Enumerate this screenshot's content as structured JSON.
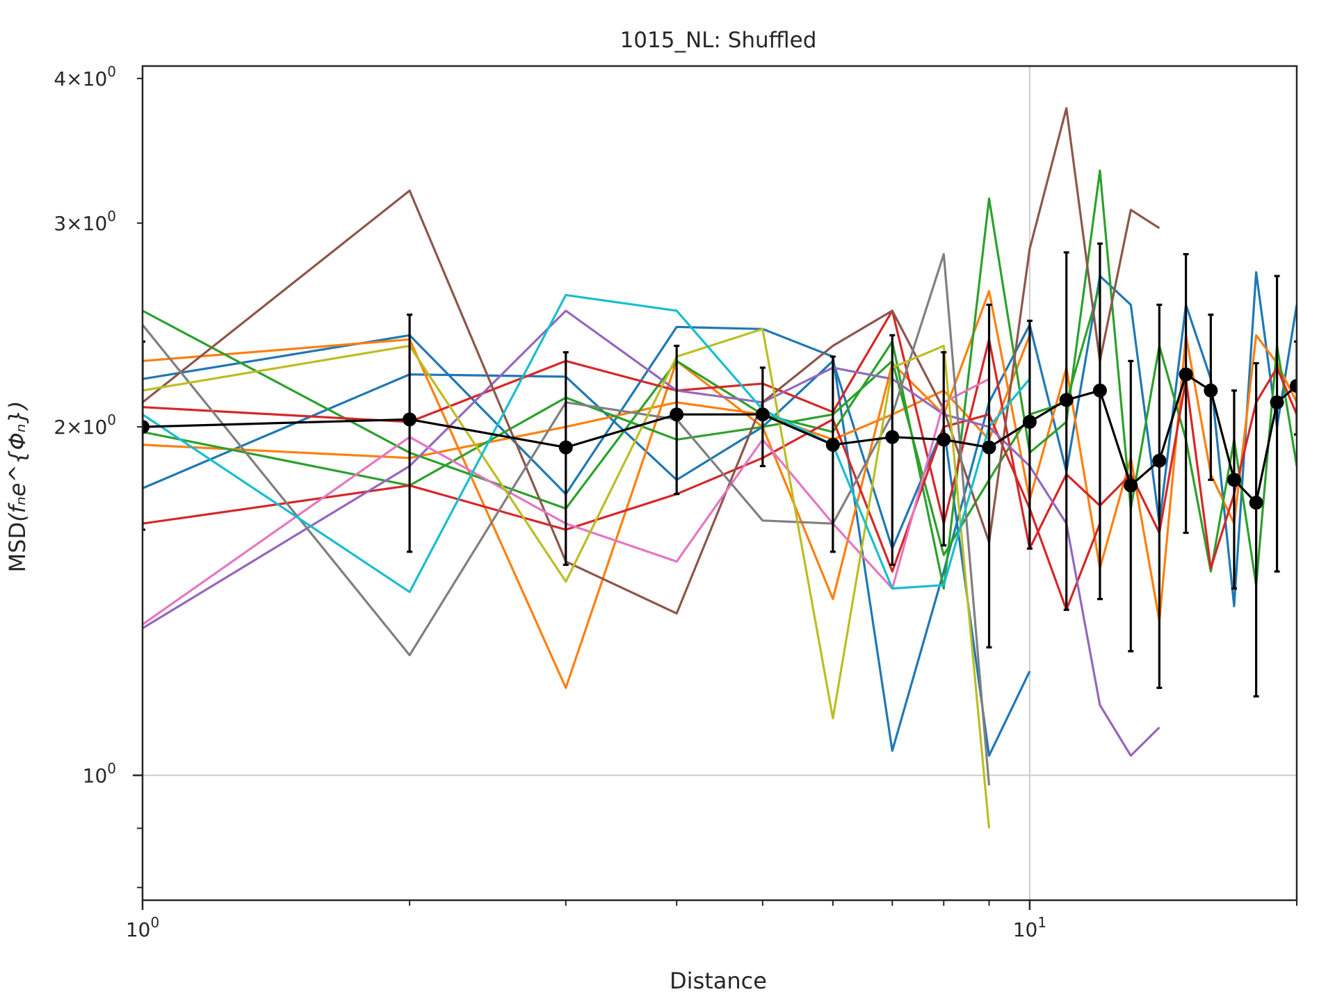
{
  "chart_data": {
    "type": "line",
    "title": "1015_NL: Shuffled",
    "xlabel": "Distance",
    "ylabel": "MSD",
    "ylabel_math": "(fₙe^{Φₙ})",
    "x_scale": "log",
    "y_scale": "log",
    "xlim": [
      1,
      20
    ],
    "ylim": [
      0.78,
      4.1
    ],
    "grid": "major only (x=10, y=1)",
    "x_major_ticks": [
      {
        "value": 1,
        "base": "10",
        "exp": "0"
      },
      {
        "value": 10,
        "base": "10",
        "exp": "1"
      }
    ],
    "y_major_ticks": [
      {
        "value": 1,
        "label": "10",
        "exp": "0"
      }
    ],
    "y_minor_labels": [
      {
        "value": 2,
        "label": "2×10",
        "exp": "0"
      },
      {
        "value": 3,
        "label": "3×10",
        "exp": "0"
      },
      {
        "value": 4,
        "label": "4×10",
        "exp": "0"
      }
    ],
    "series": [
      {
        "color": "#1f77b4",
        "x": [
          1,
          2,
          3,
          4,
          5,
          6,
          7,
          8,
          9,
          10,
          11,
          12,
          13,
          14,
          15,
          16,
          17,
          18,
          19,
          20
        ],
        "y": [
          2.2,
          2.4,
          1.75,
          2.44,
          2.43,
          2.3,
          1.05,
          1.5,
          2.1,
          2.45,
          1.83,
          2.7,
          2.55,
          1.65,
          2.55,
          2.2,
          1.4,
          2.72,
          2.0,
          2.55
        ]
      },
      {
        "color": "#1f77b4",
        "x": [
          1,
          2,
          3,
          4,
          5,
          6,
          7,
          8,
          9,
          10
        ],
        "y": [
          1.77,
          2.22,
          2.21,
          1.8,
          2.0,
          2.28,
          1.57,
          2.0,
          1.04,
          1.23
        ]
      },
      {
        "color": "#ff7f0e",
        "x": [
          1,
          2,
          3,
          4,
          5,
          6,
          7,
          8,
          9,
          10,
          11,
          12,
          13,
          14,
          15,
          16,
          17,
          18,
          19,
          20
        ],
        "y": [
          2.28,
          2.38,
          1.19,
          2.28,
          2.0,
          1.42,
          2.27,
          2.05,
          2.62,
          1.73,
          2.25,
          1.51,
          1.88,
          1.36,
          2.4,
          1.82,
          1.65,
          2.4,
          2.27,
          2.1
        ]
      },
      {
        "color": "#ff7f0e",
        "x": [
          1,
          2,
          3,
          4,
          5,
          6,
          7,
          8,
          9,
          10
        ],
        "y": [
          1.93,
          1.88,
          2.0,
          2.1,
          2.05,
          1.95,
          2.05,
          2.15,
          1.95,
          2.4
        ]
      },
      {
        "color": "#2ca02c",
        "x": [
          1,
          2,
          3,
          4,
          5,
          6,
          7,
          8,
          9,
          10,
          11,
          12,
          13,
          14,
          15,
          16,
          17,
          18,
          19,
          20
        ],
        "y": [
          2.52,
          1.9,
          1.7,
          2.28,
          2.05,
          1.98,
          2.37,
          1.45,
          3.15,
          1.9,
          2.02,
          3.33,
          1.7,
          2.35,
          1.95,
          1.5,
          1.95,
          1.46,
          2.35,
          1.85
        ]
      },
      {
        "color": "#2ca02c",
        "x": [
          1,
          2,
          3,
          4,
          5,
          6,
          7,
          8,
          9,
          10,
          11,
          12
        ],
        "y": [
          1.98,
          1.78,
          2.12,
          1.95,
          2.0,
          2.05,
          2.28,
          1.55,
          1.8,
          2.05,
          2.1,
          2.65
        ]
      },
      {
        "color": "#d62728",
        "x": [
          1,
          2,
          3,
          4,
          5,
          6,
          7,
          8,
          9,
          10,
          11,
          12,
          13,
          14,
          15,
          16,
          17,
          18,
          19,
          20
        ],
        "y": [
          2.08,
          2.02,
          2.28,
          2.15,
          2.18,
          2.06,
          2.52,
          1.65,
          2.38,
          1.57,
          1.82,
          1.71,
          1.82,
          1.62,
          2.2,
          1.51,
          1.75,
          2.1,
          2.25,
          2.05
        ]
      },
      {
        "color": "#d62728",
        "x": [
          1,
          2,
          3,
          4,
          5,
          6,
          7,
          8,
          9,
          10,
          11,
          12
        ],
        "y": [
          1.65,
          1.78,
          1.63,
          1.75,
          1.88,
          2.03,
          1.5,
          2.0,
          2.05,
          1.7,
          1.39,
          1.65
        ]
      },
      {
        "color": "#9467bd",
        "x": [
          1,
          2,
          3,
          4,
          5,
          6,
          7,
          8,
          9,
          10,
          11,
          12,
          13,
          14
        ],
        "y": [
          1.34,
          1.85,
          2.52,
          2.15,
          2.1,
          2.25,
          2.2,
          2.05,
          2.0,
          1.85,
          1.65,
          1.15,
          1.04,
          1.1
        ]
      },
      {
        "color": "#8c564b",
        "x": [
          1,
          2,
          3,
          4,
          5,
          6,
          7,
          8,
          9,
          10,
          11,
          12,
          13,
          14
        ],
        "y": [
          2.1,
          3.2,
          1.53,
          1.38,
          2.1,
          2.35,
          2.52,
          2.07,
          1.59,
          2.85,
          3.77,
          2.28,
          3.08,
          2.97
        ]
      },
      {
        "color": "#e377c2",
        "x": [
          1,
          2,
          3,
          4,
          5,
          6,
          7,
          8,
          9
        ],
        "y": [
          1.35,
          1.96,
          1.65,
          1.53,
          1.95,
          1.65,
          1.45,
          2.1,
          2.2
        ]
      },
      {
        "color": "#7f7f7f",
        "x": [
          1,
          2,
          3,
          4,
          5,
          6,
          7,
          8,
          9
        ],
        "y": [
          2.45,
          1.27,
          2.1,
          2.03,
          1.66,
          1.65,
          2.05,
          2.82,
          0.98
        ]
      },
      {
        "color": "#bcbd22",
        "x": [
          1,
          2,
          3,
          4,
          5,
          6,
          7,
          8,
          9
        ],
        "y": [
          2.15,
          2.35,
          1.47,
          2.3,
          2.43,
          1.12,
          2.25,
          2.35,
          0.9
        ]
      },
      {
        "color": "#17becf",
        "x": [
          1,
          2,
          3,
          4,
          5,
          6,
          7,
          8,
          9,
          10
        ],
        "y": [
          2.05,
          1.44,
          2.6,
          2.52,
          2.07,
          1.93,
          1.45,
          1.46,
          2.0,
          2.2
        ]
      }
    ],
    "mean_series": {
      "color": "#000000",
      "x": [
        1,
        2,
        3,
        4,
        5,
        6,
        7,
        8,
        9,
        10,
        11,
        12,
        13,
        14,
        15,
        16,
        17,
        18,
        19,
        20
      ],
      "y": [
        2.0,
        2.03,
        1.92,
        2.05,
        2.05,
        1.93,
        1.96,
        1.95,
        1.92,
        2.02,
        2.11,
        2.15,
        1.78,
        1.87,
        2.22,
        2.15,
        1.8,
        1.72,
        2.1,
        2.17
      ],
      "yerr": [
        0.37,
        0.47,
        0.4,
        0.3,
        0.2,
        0.37,
        0.44,
        0.37,
        0.63,
        0.45,
        0.72,
        0.73,
        0.5,
        0.68,
        0.6,
        0.35,
        0.35,
        0.55,
        0.6,
        0.2
      ]
    }
  }
}
